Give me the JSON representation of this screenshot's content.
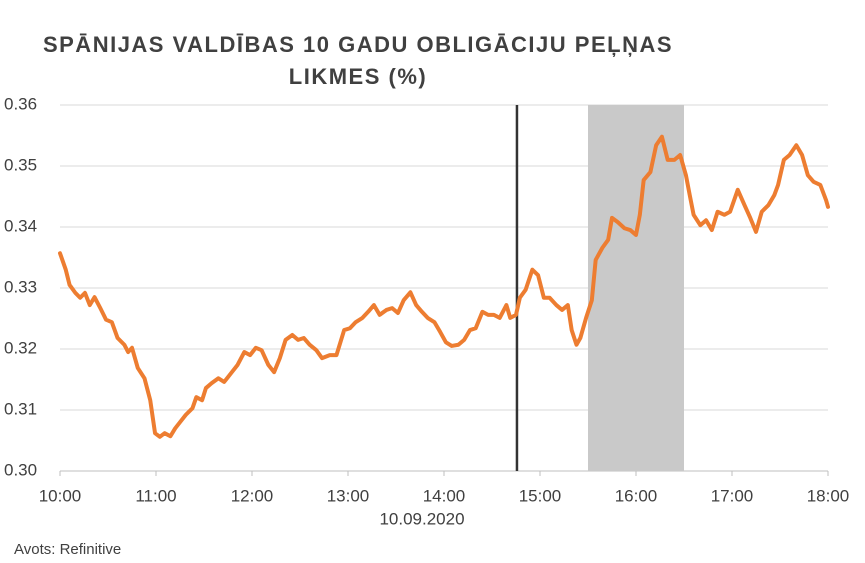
{
  "chart_data": {
    "type": "line",
    "title": [
      "SPĀNIJAS VALDĪBAS 10 GADU OBLIGĀCIJU PEĻŅAS",
      "LIKMES (%)"
    ],
    "xlabel": "10.09.2020",
    "source": "Avots: Refinitive",
    "color": "#ed7d31",
    "x": [
      10.0,
      10.06,
      10.1,
      10.16,
      10.21,
      10.26,
      10.31,
      10.36,
      10.42,
      10.48,
      10.54,
      10.6,
      10.67,
      10.71,
      10.75,
      10.81,
      10.88,
      10.94,
      10.99,
      11.04,
      11.09,
      11.15,
      11.2,
      11.25,
      11.31,
      11.38,
      11.42,
      11.48,
      11.52,
      11.58,
      11.65,
      11.71,
      11.79,
      11.85,
      11.92,
      11.98,
      12.04,
      12.1,
      12.17,
      12.23,
      12.29,
      12.35,
      12.42,
      12.48,
      12.54,
      12.6,
      12.67,
      12.73,
      12.81,
      12.88,
      12.96,
      13.02,
      13.08,
      13.15,
      13.21,
      13.27,
      13.33,
      13.4,
      13.46,
      13.52,
      13.58,
      13.65,
      13.71,
      13.77,
      13.83,
      13.9,
      13.96,
      14.02,
      14.08,
      14.15,
      14.21,
      14.27,
      14.33,
      14.4,
      14.46,
      14.52,
      14.58,
      14.65,
      14.69,
      14.75,
      14.79,
      14.85,
      14.92,
      14.98,
      15.04,
      15.1,
      15.17,
      15.23,
      15.29,
      15.33,
      15.38,
      15.42,
      15.48,
      15.54,
      15.58,
      15.65,
      15.71,
      15.75,
      15.81,
      15.88,
      15.94,
      16.0,
      16.04,
      16.08,
      16.15,
      16.21,
      16.27,
      16.33,
      16.4,
      16.46,
      16.52,
      16.56,
      16.6,
      16.67,
      16.73,
      16.79,
      16.85,
      16.92,
      16.98,
      17.06,
      17.13,
      17.19,
      17.25,
      17.31,
      17.38,
      17.44,
      17.48,
      17.54,
      17.6,
      17.67,
      17.73,
      17.79,
      17.85,
      17.92,
      17.98,
      18.0
    ],
    "values": [
      0.3357,
      0.333,
      0.3305,
      0.3292,
      0.3284,
      0.3292,
      0.3272,
      0.3285,
      0.3267,
      0.3248,
      0.3244,
      0.3218,
      0.3207,
      0.3195,
      0.3202,
      0.3169,
      0.3152,
      0.3116,
      0.3062,
      0.3056,
      0.3062,
      0.3057,
      0.307,
      0.308,
      0.3092,
      0.3103,
      0.3121,
      0.3116,
      0.3136,
      0.3144,
      0.3152,
      0.3146,
      0.3162,
      0.3174,
      0.3195,
      0.319,
      0.3202,
      0.3198,
      0.3174,
      0.3162,
      0.3185,
      0.3215,
      0.3223,
      0.3215,
      0.3218,
      0.3207,
      0.3198,
      0.3185,
      0.319,
      0.319,
      0.3231,
      0.3234,
      0.3244,
      0.3251,
      0.3261,
      0.3272,
      0.3256,
      0.3264,
      0.3267,
      0.3259,
      0.328,
      0.3293,
      0.3272,
      0.3261,
      0.3251,
      0.3244,
      0.3228,
      0.3211,
      0.3205,
      0.3207,
      0.3215,
      0.3231,
      0.3234,
      0.3261,
      0.3256,
      0.3256,
      0.3251,
      0.3272,
      0.3251,
      0.3256,
      0.3284,
      0.3297,
      0.333,
      0.3321,
      0.3284,
      0.3284,
      0.3272,
      0.3264,
      0.3272,
      0.3231,
      0.3207,
      0.3218,
      0.3251,
      0.328,
      0.3346,
      0.3366,
      0.3379,
      0.3415,
      0.3408,
      0.3398,
      0.3395,
      0.3387,
      0.342,
      0.3477,
      0.349,
      0.3534,
      0.3548,
      0.351,
      0.351,
      0.3518,
      0.3485,
      0.3452,
      0.342,
      0.3403,
      0.3411,
      0.3395,
      0.3425,
      0.342,
      0.3425,
      0.3461,
      0.3436,
      0.3415,
      0.3392,
      0.3425,
      0.3436,
      0.3452,
      0.3469,
      0.351,
      0.3518,
      0.3534,
      0.3518,
      0.3485,
      0.3474,
      0.3469,
      0.3444,
      0.3433
    ],
    "xlim": [
      10,
      18
    ],
    "xticks": [
      {
        "value": 10,
        "label": "10:00"
      },
      {
        "value": 11,
        "label": "11:00"
      },
      {
        "value": 12,
        "label": "12:00"
      },
      {
        "value": 13,
        "label": "13:00"
      },
      {
        "value": 14,
        "label": "14:00"
      },
      {
        "value": 15,
        "label": "15:00"
      },
      {
        "value": 16,
        "label": "16:00"
      },
      {
        "value": 17,
        "label": "17:00"
      },
      {
        "value": 18,
        "label": "18:00"
      }
    ],
    "ylim": [
      0.3,
      0.36
    ],
    "yticks": [
      {
        "value": 0.3,
        "label": "0.30"
      },
      0.31,
      0.32,
      0.33,
      0.34,
      0.35,
      0.36
    ],
    "vline": 14.76,
    "shade": [
      15.5,
      16.5
    ],
    "grid": true
  }
}
